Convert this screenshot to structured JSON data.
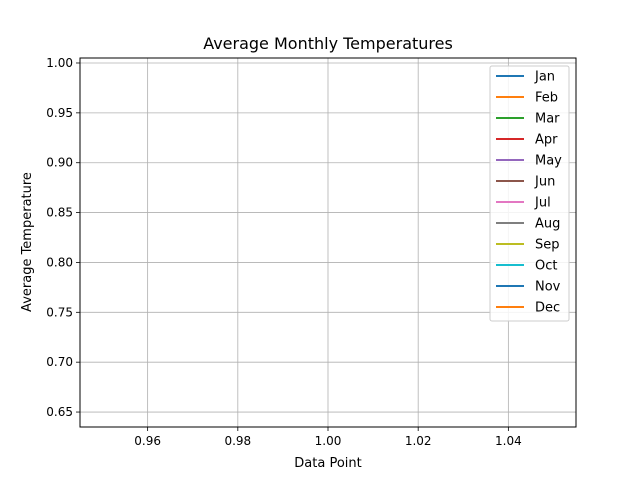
{
  "chart_data": {
    "type": "line",
    "title": "Average Monthly Temperatures",
    "xlabel": "Data Point",
    "ylabel": "Average Temperature",
    "xlim": [
      0.945,
      1.055
    ],
    "ylim": [
      0.635,
      1.005
    ],
    "xticks": [
      0.96,
      0.98,
      1.0,
      1.02,
      1.04
    ],
    "xtick_labels": [
      "0.96",
      "0.98",
      "1.00",
      "1.02",
      "1.04"
    ],
    "yticks": [
      0.65,
      0.7,
      0.75,
      0.8,
      0.85,
      0.9,
      0.95,
      1.0
    ],
    "ytick_labels": [
      "0.65",
      "0.70",
      "0.75",
      "0.80",
      "0.85",
      "0.90",
      "0.95",
      "1.00"
    ],
    "grid": true,
    "legend_position": "top-right",
    "series": [
      {
        "name": "Jan",
        "color": "#1f77b4",
        "x": [],
        "values": []
      },
      {
        "name": "Feb",
        "color": "#ff7f0e",
        "x": [],
        "values": []
      },
      {
        "name": "Mar",
        "color": "#2ca02c",
        "x": [],
        "values": []
      },
      {
        "name": "Apr",
        "color": "#d62728",
        "x": [],
        "values": []
      },
      {
        "name": "May",
        "color": "#9467bd",
        "x": [],
        "values": []
      },
      {
        "name": "Jun",
        "color": "#8c564b",
        "x": [],
        "values": []
      },
      {
        "name": "Jul",
        "color": "#e377c2",
        "x": [],
        "values": []
      },
      {
        "name": "Aug",
        "color": "#7f7f7f",
        "x": [],
        "values": []
      },
      {
        "name": "Sep",
        "color": "#bcbd22",
        "x": [],
        "values": []
      },
      {
        "name": "Oct",
        "color": "#17becf",
        "x": [],
        "values": []
      },
      {
        "name": "Nov",
        "color": "#1f77b4",
        "x": [],
        "values": []
      },
      {
        "name": "Dec",
        "color": "#ff7f0e",
        "x": [],
        "values": []
      }
    ]
  }
}
